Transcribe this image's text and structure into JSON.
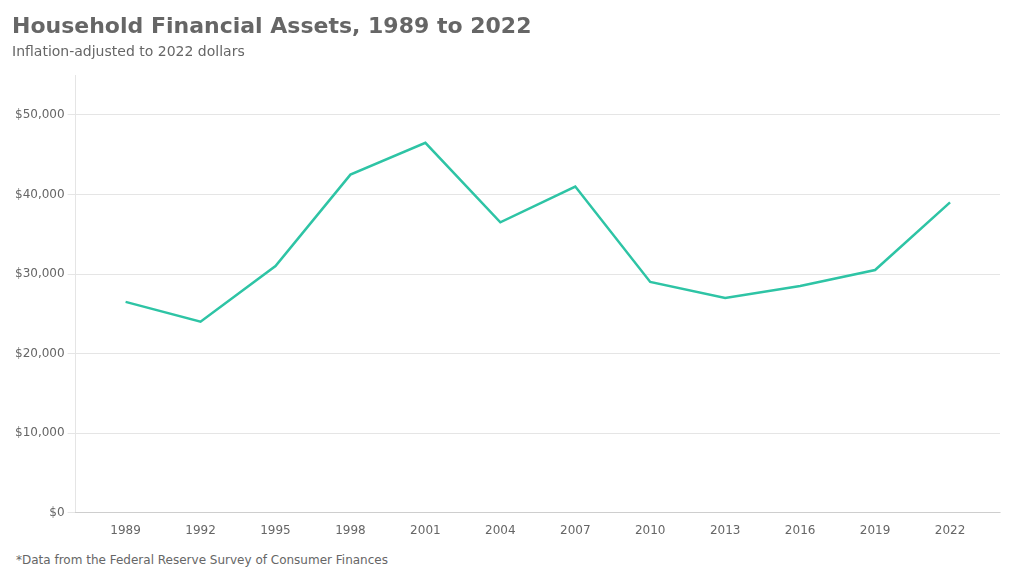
{
  "chart_data": {
    "type": "line",
    "title": "Household Financial Assets, 1989 to 2022",
    "subtitle": "Inflation-adjusted to 2022 dollars",
    "footnote": "*Data from the Federal Reserve Survey of Consumer Finances",
    "x": [
      1989,
      1992,
      1995,
      1998,
      2001,
      2004,
      2007,
      2010,
      2013,
      2016,
      2019,
      2022
    ],
    "values": [
      26500,
      24000,
      31000,
      42500,
      46500,
      36500,
      41000,
      29000,
      27000,
      28500,
      30500,
      39000
    ],
    "color": "#2ec4a5",
    "xlim": [
      1987,
      2024
    ],
    "xticks": [
      1989,
      1992,
      1995,
      1998,
      2001,
      2004,
      2007,
      2010,
      2013,
      2016,
      2019,
      2022
    ],
    "ylim": [
      0,
      55000
    ],
    "yticks": [
      {
        "value": 0,
        "label": "$0"
      },
      {
        "value": 10000,
        "label": "$10,000"
      },
      {
        "value": 20000,
        "label": "$20,000"
      },
      {
        "value": 30000,
        "label": "$30,000"
      },
      {
        "value": 40000,
        "label": "$40,000"
      },
      {
        "value": 50000,
        "label": "$50,000"
      }
    ],
    "grid": "y"
  }
}
